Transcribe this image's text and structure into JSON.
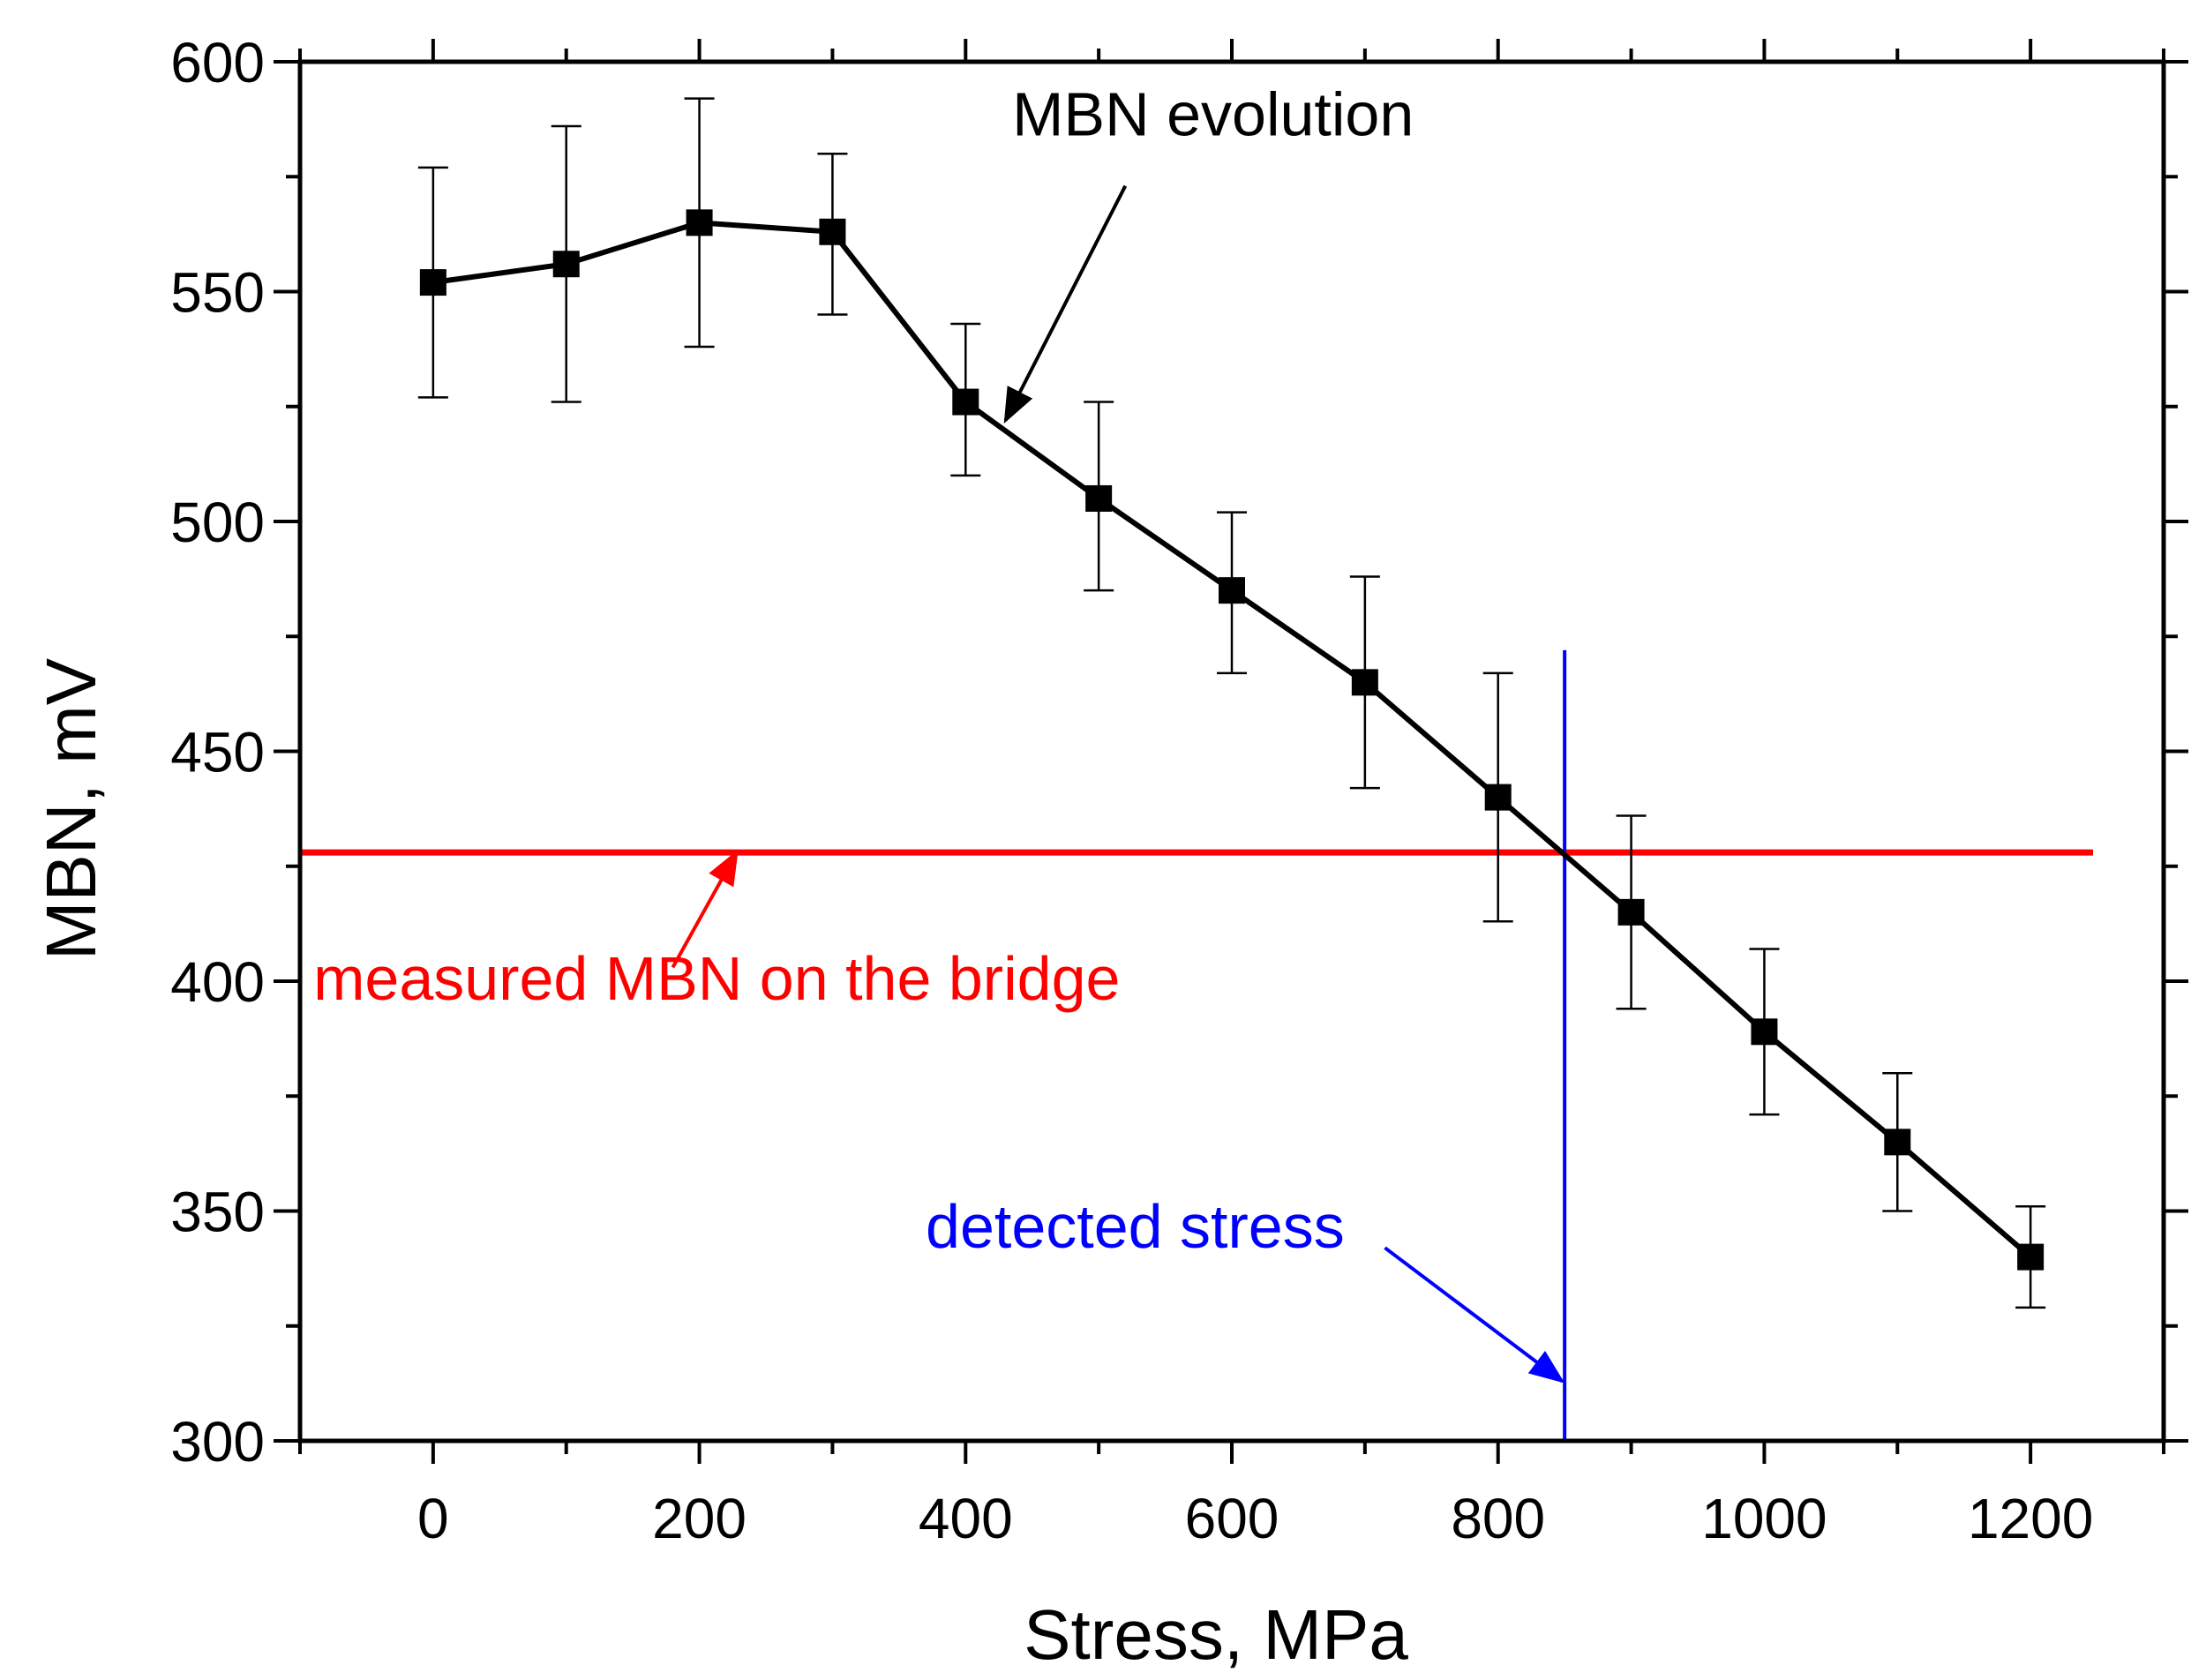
{
  "chart_data": {
    "type": "line",
    "xlabel": "Stress, MPa",
    "ylabel": "MBN, mV",
    "xlim": [
      -100,
      1300
    ],
    "ylim": [
      300,
      600
    ],
    "x_ticks": [
      "0",
      "200",
      "400",
      "600",
      "800",
      "1000",
      "1200"
    ],
    "x_tick_values": [
      0,
      200,
      400,
      600,
      800,
      1000,
      1200
    ],
    "x_minor_ticks": [
      -100,
      100,
      300,
      500,
      700,
      900,
      1100,
      1300
    ],
    "y_ticks": [
      "300",
      "350",
      "400",
      "450",
      "500",
      "550",
      "600"
    ],
    "y_tick_values": [
      300,
      350,
      400,
      450,
      500,
      550,
      600
    ],
    "y_minor_ticks": [
      325,
      375,
      425,
      475,
      525,
      575
    ],
    "grid": false,
    "series": [
      {
        "x": [
          0,
          100,
          200,
          300,
          400,
          500,
          600,
          700,
          800,
          900,
          1000,
          1100,
          1200
        ],
        "y": [
          552,
          556,
          565,
          563,
          526,
          505,
          485,
          465,
          440,
          415,
          389,
          365,
          340
        ],
        "err_low": [
          527,
          526,
          538,
          545,
          510,
          485,
          467,
          442,
          413,
          394,
          371,
          350,
          329
        ],
        "err_high": [
          577,
          586,
          592,
          580,
          543,
          526,
          502,
          488,
          467,
          436,
          407,
          380,
          351
        ],
        "color": "#000000",
        "marker": "square"
      }
    ],
    "reference_lines": {
      "horizontal": {
        "y": 428,
        "color": "#ff0000"
      },
      "vertical": {
        "x": 850,
        "y_top": 472,
        "color": "#0000ff"
      }
    },
    "annotations": [
      {
        "text": "MBN evolution",
        "color": "#000000",
        "text_x": 435,
        "text_y": 584,
        "arrow_from": [
          520,
          573
        ],
        "arrow_to": [
          430,
          522
        ]
      },
      {
        "text": "measured MBN on the bridge",
        "color": "#ff0000",
        "text_x": -90,
        "text_y": 396,
        "arrow_from": [
          180,
          403
        ],
        "arrow_to": [
          228,
          428
        ]
      },
      {
        "text": "detected stress",
        "color": "#0000ff",
        "text_x": 370,
        "text_y": 342,
        "arrow_from": [
          715,
          342
        ],
        "arrow_to": [
          848,
          313
        ]
      }
    ]
  }
}
